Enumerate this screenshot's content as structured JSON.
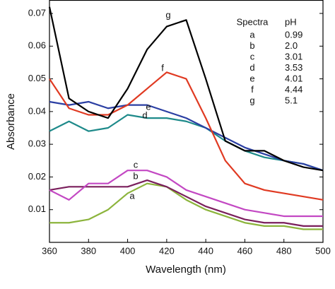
{
  "chart_data": {
    "type": "line",
    "x_label": "Wavelength (nm)",
    "y_label": "Absorbance",
    "x": [
      360,
      370,
      380,
      390,
      400,
      410,
      420,
      430,
      440,
      450,
      460,
      470,
      480,
      490,
      500
    ],
    "series": [
      {
        "name": "a",
        "color": "#8cb43c",
        "values": [
          0.006,
          0.006,
          0.007,
          0.01,
          0.015,
          0.018,
          0.017,
          0.013,
          0.01,
          0.008,
          0.006,
          0.005,
          0.005,
          0.004,
          0.004
        ]
      },
      {
        "name": "b",
        "color": "#7a1f5c",
        "values": [
          0.016,
          0.017,
          0.017,
          0.017,
          0.017,
          0.019,
          0.017,
          0.014,
          0.011,
          0.009,
          0.007,
          0.006,
          0.006,
          0.005,
          0.005
        ]
      },
      {
        "name": "c",
        "color": "#c348c3",
        "values": [
          0.016,
          0.013,
          0.018,
          0.018,
          0.022,
          0.022,
          0.02,
          0.016,
          0.014,
          0.012,
          0.01,
          0.009,
          0.008,
          0.008,
          0.008
        ]
      },
      {
        "name": "d",
        "color": "#1e8a8a",
        "values": [
          0.034,
          0.037,
          0.034,
          0.035,
          0.039,
          0.038,
          0.038,
          0.037,
          0.035,
          0.031,
          0.028,
          0.026,
          0.025,
          0.024,
          0.022
        ]
      },
      {
        "name": "e",
        "color": "#2b3fa3",
        "values": [
          0.043,
          0.042,
          0.043,
          0.041,
          0.042,
          0.042,
          0.04,
          0.038,
          0.035,
          0.032,
          0.029,
          0.027,
          0.025,
          0.024,
          0.022
        ]
      },
      {
        "name": "f",
        "color": "#e03a22",
        "values": [
          0.05,
          0.041,
          0.039,
          0.039,
          0.042,
          0.047,
          0.052,
          0.05,
          0.038,
          0.025,
          0.018,
          0.016,
          0.015,
          0.014,
          0.013
        ]
      },
      {
        "name": "g",
        "color": "#000000",
        "values": [
          0.072,
          0.044,
          0.04,
          0.038,
          0.047,
          0.059,
          0.066,
          0.068,
          0.05,
          0.031,
          0.028,
          0.028,
          0.025,
          0.023,
          0.022
        ]
      }
    ],
    "xlim": [
      360,
      500
    ],
    "xticks": [
      360,
      380,
      400,
      420,
      440,
      460,
      480,
      500
    ],
    "ylim": [
      0,
      0.074
    ],
    "yticks": [
      0.01,
      0.02,
      0.03,
      0.04,
      0.05,
      0.06,
      0.07
    ],
    "legend_table": {
      "headers": [
        "Spectra",
        "pH"
      ],
      "rows": [
        [
          "a",
          "0.99"
        ],
        [
          "b",
          "2.0"
        ],
        [
          "c",
          "3.01"
        ],
        [
          "d",
          "3.53"
        ],
        [
          "e",
          "4.01"
        ],
        [
          "f",
          "4.44"
        ],
        [
          "g",
          "5.1"
        ]
      ]
    }
  }
}
